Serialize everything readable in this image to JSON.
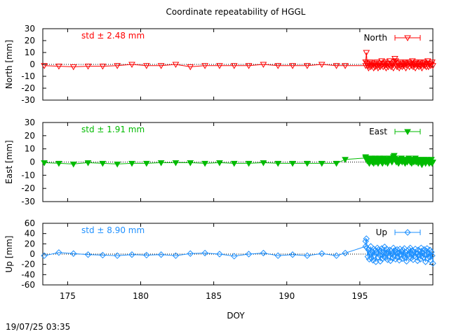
{
  "title": "Coordinate repeatability of HGGL",
  "timestamp": "19/07/25 03:35",
  "chart_data": [
    {
      "type": "line",
      "series": [
        {
          "name": "North",
          "color": "#ff0000",
          "marker": "triangle-down-open"
        }
      ],
      "ylabel": "North [mm]",
      "ylim": [
        -30,
        30
      ],
      "yticks": [
        -30,
        -20,
        -10,
        0,
        10,
        20,
        30
      ],
      "annotation": "std ± 2.48 mm",
      "x": [
        173.4,
        174.4,
        175.4,
        176.4,
        177.4,
        178.4,
        179.4,
        180.4,
        181.4,
        182.4,
        183.4,
        184.4,
        185.4,
        186.4,
        187.4,
        188.4,
        189.4,
        190.4,
        191.4,
        192.4,
        193.4,
        194.0,
        195.4
      ],
      "values": [
        -1,
        -1.5,
        -2,
        -1.5,
        -1.5,
        -1,
        0,
        -1,
        -1,
        0,
        -2,
        -1,
        -1,
        -1,
        -1,
        0,
        -1,
        -1,
        -1,
        0,
        -1,
        -1,
        -1
      ],
      "dense": {
        "x_start": 195.4,
        "x_end": 200.0,
        "step": 0.05,
        "values": [
          2,
          10,
          1,
          -1,
          -3,
          0,
          2,
          -2,
          -1,
          1,
          0,
          -3,
          1,
          -2,
          0,
          2,
          -1,
          -3,
          0,
          1,
          -2,
          -1,
          3,
          0,
          -2,
          1,
          -1,
          2,
          -3,
          0,
          1,
          -2,
          0,
          3,
          -1,
          -2,
          1,
          0,
          -3,
          2,
          5,
          3,
          -1,
          -2,
          1,
          0,
          -3,
          -1,
          2,
          0,
          -2,
          1,
          -1,
          0,
          2,
          -3,
          1,
          -1,
          0,
          2,
          -2,
          1,
          0,
          -1,
          3,
          -2,
          0,
          1,
          -3,
          2,
          0,
          -1,
          1,
          -2,
          0,
          2,
          -1,
          -3,
          1,
          0,
          2,
          -1,
          0,
          -2,
          1,
          3,
          -2,
          0,
          1,
          -1,
          0,
          2,
          -1
        ]
      }
    },
    {
      "type": "line",
      "series": [
        {
          "name": "East",
          "color": "#00bb00",
          "marker": "triangle-down-filled"
        }
      ],
      "ylabel": "East [mm]",
      "ylim": [
        -30,
        30
      ],
      "yticks": [
        -30,
        -20,
        -10,
        0,
        10,
        20,
        30
      ],
      "annotation": "std ± 1.91 mm",
      "x": [
        173.4,
        174.4,
        175.4,
        176.4,
        177.4,
        178.4,
        179.4,
        180.4,
        181.4,
        182.4,
        183.4,
        184.4,
        185.4,
        186.4,
        187.4,
        188.4,
        189.4,
        190.4,
        191.4,
        192.4,
        193.4,
        194.0,
        195.4
      ],
      "values": [
        -0.5,
        -1,
        -1.5,
        -0.5,
        -1,
        -1.5,
        -1,
        -1,
        -0.5,
        -0.5,
        -0.5,
        -1,
        -0.5,
        -1,
        -1,
        -0.5,
        -1,
        -1,
        -1,
        -1,
        -1,
        2,
        3
      ],
      "dense": {
        "x_start": 195.4,
        "x_end": 200.0,
        "step": 0.05,
        "values": [
          4,
          3,
          1,
          2,
          0,
          -1,
          2,
          1,
          3,
          0,
          1,
          -1,
          2,
          3,
          0,
          1,
          2,
          -1,
          0,
          3,
          1,
          2,
          0,
          -1,
          1,
          3,
          2,
          0,
          1,
          2,
          -1,
          0,
          1,
          3,
          2,
          1,
          0,
          2,
          4,
          5,
          3,
          1,
          0,
          2,
          1,
          -1,
          0,
          2,
          1,
          3,
          0,
          1,
          2,
          0,
          -1,
          1,
          2,
          0,
          1,
          3,
          1,
          0,
          2,
          -1,
          1,
          2,
          0,
          1,
          3,
          0,
          1,
          2,
          -1,
          0,
          1,
          2,
          0,
          -2,
          1,
          0,
          2,
          1,
          -1,
          0,
          2,
          1,
          0,
          -1,
          1,
          0,
          2,
          -1,
          0
        ]
      }
    },
    {
      "type": "line",
      "series": [
        {
          "name": "Up",
          "color": "#1e90ff",
          "marker": "diamond-open"
        }
      ],
      "ylabel": "Up [mm]",
      "ylim": [
        -60,
        60
      ],
      "yticks": [
        -60,
        -40,
        -20,
        0,
        20,
        40,
        60
      ],
      "annotation": "std ± 8.90 mm",
      "xlabel": "DOY",
      "xlim": [
        173.3,
        200.0
      ],
      "xticks": [
        175,
        180,
        185,
        190,
        195
      ],
      "x": [
        173.4,
        174.4,
        175.4,
        176.4,
        177.4,
        178.4,
        179.4,
        180.4,
        181.4,
        182.4,
        183.4,
        184.4,
        185.4,
        186.4,
        187.4,
        188.4,
        189.4,
        190.4,
        191.4,
        192.4,
        193.4,
        194.0,
        195.4
      ],
      "values": [
        -3,
        3,
        1,
        -1,
        -2,
        -3,
        -1,
        -2,
        -1,
        -3,
        1,
        2,
        0,
        -4,
        0,
        2,
        -3,
        -1,
        -3,
        1,
        -3,
        2,
        15
      ],
      "dense": {
        "x_start": 195.4,
        "x_end": 200.0,
        "step": 0.05,
        "values": [
          25,
          30,
          12,
          -5,
          8,
          -10,
          3,
          15,
          -8,
          5,
          -12,
          10,
          -3,
          8,
          -15,
          4,
          12,
          -6,
          9,
          -2,
          -14,
          6,
          11,
          -9,
          3,
          -5,
          14,
          -7,
          2,
          10,
          -11,
          5,
          -4,
          8,
          -13,
          6,
          1,
          -8,
          12,
          -3,
          7,
          -10,
          4,
          9,
          -6,
          2,
          -12,
          10,
          -1,
          5,
          -9,
          8,
          -4,
          11,
          -7,
          3,
          -14,
          6,
          0,
          9,
          -5,
          12,
          -8,
          2,
          7,
          -11,
          4,
          -3,
          10,
          -6,
          1,
          -13,
          8,
          -2,
          5,
          -10,
          12,
          -4,
          3,
          -7,
          9,
          -1,
          -15,
          6,
          11,
          -9,
          2,
          -5,
          8,
          -12,
          4,
          -3,
          -18
        ]
      }
    }
  ]
}
